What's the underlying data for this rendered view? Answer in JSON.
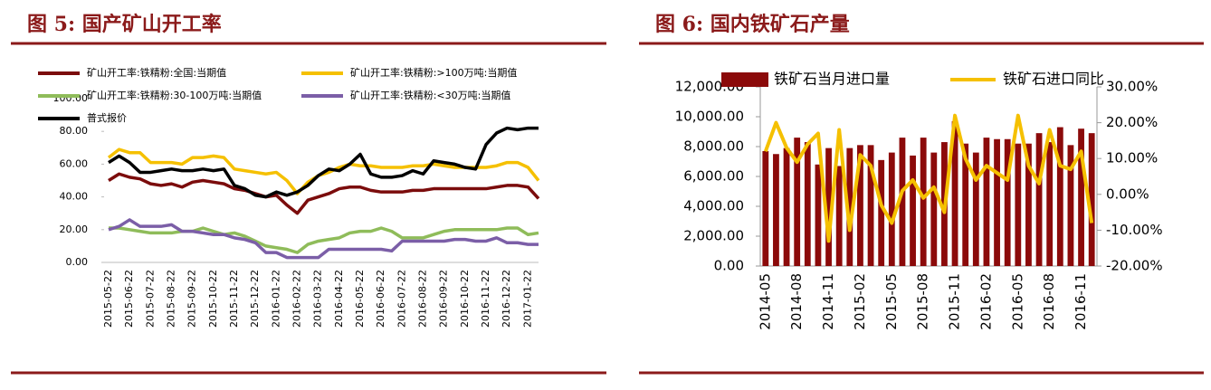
{
  "chart_data": [
    {
      "type": "line",
      "title": "图 5: 国产矿山开工率",
      "categories": [
        "2015-05-22",
        null,
        "2015-06-22",
        null,
        "2015-07-22",
        null,
        "2015-08-22",
        null,
        "2015-09-22",
        null,
        "2015-10-22",
        null,
        "2015-11-22",
        null,
        "2015-12-22",
        null,
        "2016-01-22",
        null,
        "2016-02-22",
        null,
        "2016-03-22",
        null,
        "2016-04-22",
        null,
        "2016-05-22",
        null,
        "2016-06-22",
        null,
        "2016-07-22",
        null,
        "2016-08-22",
        null,
        "2016-09-22",
        null,
        "2016-10-22",
        null,
        "2016-11-22",
        null,
        "2016-12-22",
        null,
        "2017-01-22",
        null
      ],
      "series": [
        {
          "name": "矿山开工率:铁精粉:全国:当期值",
          "color": "#7b0c0c",
          "values": [
            50,
            54,
            52,
            51,
            48,
            47,
            48,
            46,
            49,
            50,
            49,
            48,
            45,
            44,
            42,
            40,
            41,
            35,
            30,
            38,
            40,
            42,
            45,
            46,
            46,
            44,
            43,
            43,
            43,
            44,
            44,
            45,
            45,
            45,
            45,
            45,
            45,
            46,
            47,
            47,
            46,
            39
          ]
        },
        {
          "name": "矿山开工率:铁精粉:>100万吨:当期值",
          "color": "#f5c000",
          "values": [
            64,
            69,
            67,
            67,
            61,
            61,
            61,
            60,
            64,
            64,
            65,
            64,
            57,
            56,
            55,
            54,
            55,
            50,
            42,
            49,
            53,
            55,
            58,
            60,
            59,
            59,
            58,
            58,
            58,
            59,
            59,
            60,
            59,
            58,
            58,
            58,
            58,
            59,
            61,
            61,
            58,
            50
          ]
        },
        {
          "name": "矿山开工率:铁精粉:30-100万吨:当期值",
          "color": "#8fbc5a",
          "values": [
            21,
            21,
            20,
            19,
            18,
            18,
            18,
            19,
            19,
            21,
            19,
            17,
            18,
            16,
            13,
            10,
            9,
            8,
            6,
            11,
            13,
            14,
            15,
            18,
            19,
            19,
            21,
            19,
            15,
            15,
            15,
            17,
            19,
            20,
            20,
            20,
            20,
            20,
            21,
            21,
            17,
            18
          ]
        },
        {
          "name": "矿山开工率:铁精粉:<30万吨:当期值",
          "color": "#7b5ea7",
          "values": [
            20,
            22,
            26,
            22,
            22,
            22,
            23,
            19,
            19,
            18,
            17,
            17,
            15,
            14,
            12,
            6,
            6,
            3,
            3,
            3,
            3,
            8,
            8,
            8,
            8,
            8,
            8,
            7,
            13,
            13,
            13,
            13,
            13,
            14,
            14,
            13,
            13,
            15,
            12,
            12,
            11,
            11
          ]
        },
        {
          "name": "普式报价",
          "color": "#000000",
          "values": [
            61,
            65,
            61,
            55,
            55,
            56,
            57,
            56,
            56,
            57,
            56,
            57,
            47,
            45,
            41,
            40,
            43,
            41,
            43,
            47,
            53,
            57,
            56,
            60,
            66,
            54,
            52,
            52,
            53,
            56,
            54,
            62,
            61,
            60,
            58,
            57,
            72,
            79,
            82,
            81,
            82,
            82
          ]
        }
      ],
      "ylim": [
        0,
        100
      ],
      "yticks": [
        {
          "value": 0,
          "label": "0.00"
        },
        {
          "value": 20,
          "label": "20.00"
        },
        {
          "value": 40,
          "label": "40.00"
        },
        {
          "value": 60,
          "label": "60.00"
        },
        {
          "value": 80,
          "label": "80.00"
        },
        {
          "value": 100,
          "label": "100.00"
        }
      ]
    },
    {
      "type": "bar",
      "title": "图 6: 国内铁矿石产量",
      "categories": [
        "2014-05",
        null,
        null,
        "2014-08",
        null,
        null,
        "2014-11",
        null,
        null,
        "2015-02",
        null,
        null,
        "2015-05",
        null,
        null,
        "2015-08",
        null,
        null,
        "2015-11",
        null,
        null,
        "2016-02",
        null,
        null,
        "2016-05",
        null,
        null,
        "2016-08",
        null,
        null,
        "2016-11",
        null
      ],
      "series": [
        {
          "name": "铁矿石当月进口量",
          "type": "bar",
          "color": "#8b0a0a",
          "values": [
            7700,
            7500,
            7900,
            8600,
            8300,
            6800,
            7900,
            6700,
            7900,
            8100,
            8100,
            7100,
            7600,
            8600,
            7400,
            8600,
            7600,
            8300,
            9700,
            8200,
            7600,
            8600,
            8500,
            8500,
            8200,
            8200,
            8900,
            8300,
            9300,
            8100,
            9200,
            8900
          ]
        },
        {
          "name": "铁矿石进口同比",
          "type": "line",
          "axis": "y2",
          "color": "#f5c000",
          "values": [
            12,
            20,
            13,
            9,
            14,
            17,
            -13,
            18,
            -10,
            11,
            8,
            -3,
            -8,
            1,
            4,
            -1,
            2,
            -5,
            22,
            10,
            4,
            8,
            6,
            4,
            22,
            8,
            3,
            18,
            8,
            7,
            12,
            -8
          ]
        }
      ],
      "ylim": [
        0,
        12000
      ],
      "yticks": [
        {
          "value": 0,
          "label": "0.00"
        },
        {
          "value": 2000,
          "label": "2,000.00"
        },
        {
          "value": 4000,
          "label": "4,000.00"
        },
        {
          "value": 6000,
          "label": "6,000.00"
        },
        {
          "value": 8000,
          "label": "8,000.00"
        },
        {
          "value": 10000,
          "label": "10,000.00"
        },
        {
          "value": 12000,
          "label": "12,000.00"
        }
      ],
      "y2lim": [
        -20,
        30
      ],
      "y2ticks": [
        {
          "value": -20,
          "label": "-20.00%"
        },
        {
          "value": -10,
          "label": "-10.00%"
        },
        {
          "value": 0,
          "label": "0.00%"
        },
        {
          "value": 10,
          "label": "10.00%"
        },
        {
          "value": 20,
          "label": "20.00%"
        },
        {
          "value": 30,
          "label": "30.00%"
        }
      ]
    }
  ]
}
